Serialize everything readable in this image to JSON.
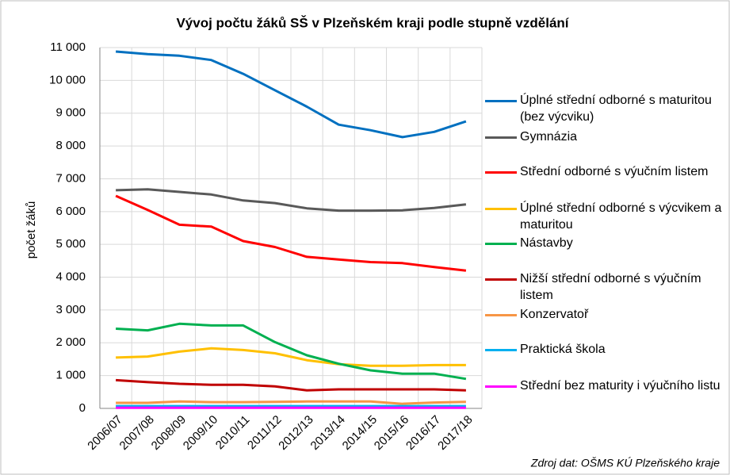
{
  "chart_data": {
    "type": "line",
    "title": "Vývoj počtu žáků SŠ v Plzeňském kraji podle stupně vzdělání",
    "y_label": "počet žáků",
    "source": "Zdroj dat: OŠMS KÚ Plzeňského kraje",
    "categories": [
      "2006/07",
      "2007/08",
      "2008/09",
      "2009/10",
      "2010/11",
      "2011/12",
      "2012/13",
      "2013/14",
      "2014/15",
      "2015/16",
      "2016/17",
      "2017/18"
    ],
    "ylim": [
      0,
      11000
    ],
    "yticks": [
      {
        "value": 0,
        "label": "0"
      },
      {
        "value": 1000,
        "label": "1 000"
      },
      {
        "value": 2000,
        "label": "2 000"
      },
      {
        "value": 3000,
        "label": "3 000"
      },
      {
        "value": 4000,
        "label": "4 000"
      },
      {
        "value": 5000,
        "label": "5 000"
      },
      {
        "value": 6000,
        "label": "6 000"
      },
      {
        "value": 7000,
        "label": "7 000"
      },
      {
        "value": 8000,
        "label": "8 000"
      },
      {
        "value": 9000,
        "label": "9 000"
      },
      {
        "value": 10000,
        "label": "10 000"
      },
      {
        "value": 11000,
        "label": "11 000"
      }
    ],
    "grid": true,
    "legend": "right",
    "series": [
      {
        "name": "Úplné střední odborné s maturitou (bez výcviku)",
        "color": "#0070c0",
        "values": [
          10880,
          10800,
          10750,
          10620,
          10200,
          9700,
          9200,
          8650,
          8480,
          8270,
          8430,
          8750
        ]
      },
      {
        "name": "Gymnázia",
        "color": "#595959",
        "values": [
          6650,
          6680,
          6600,
          6520,
          6340,
          6260,
          6100,
          6030,
          6030,
          6040,
          6110,
          6220
        ]
      },
      {
        "name": "Střední odborné s výučním listem",
        "color": "#ff0000",
        "values": [
          6480,
          6050,
          5600,
          5540,
          5100,
          4920,
          4620,
          4540,
          4460,
          4430,
          4310,
          4200
        ]
      },
      {
        "name": "Úplné střední odborné s výcvikem a maturitou",
        "color": "#ffc000",
        "values": [
          1550,
          1580,
          1730,
          1830,
          1780,
          1680,
          1470,
          1350,
          1300,
          1300,
          1320,
          1320
        ]
      },
      {
        "name": "Nástavby",
        "color": "#00b050",
        "values": [
          2430,
          2380,
          2580,
          2530,
          2530,
          2020,
          1620,
          1360,
          1160,
          1060,
          1060,
          900
        ]
      },
      {
        "name": "Nižší střední odborné s výučním listem",
        "color": "#c00000",
        "values": [
          860,
          800,
          750,
          720,
          720,
          670,
          550,
          580,
          580,
          580,
          580,
          550
        ]
      },
      {
        "name": "Konzervatoř",
        "color": "#f79646",
        "values": [
          170,
          170,
          210,
          190,
          190,
          200,
          210,
          210,
          210,
          140,
          180,
          200
        ]
      },
      {
        "name": "Praktická škola",
        "color": "#00b0f0",
        "values": [
          70,
          70,
          70,
          70,
          70,
          70,
          70,
          70,
          70,
          70,
          70,
          70
        ]
      },
      {
        "name": "Střední bez maturity i výučního listu",
        "color": "#ff00ff",
        "values": [
          20,
          20,
          20,
          20,
          20,
          20,
          20,
          20,
          20,
          20,
          20,
          20
        ]
      }
    ]
  }
}
